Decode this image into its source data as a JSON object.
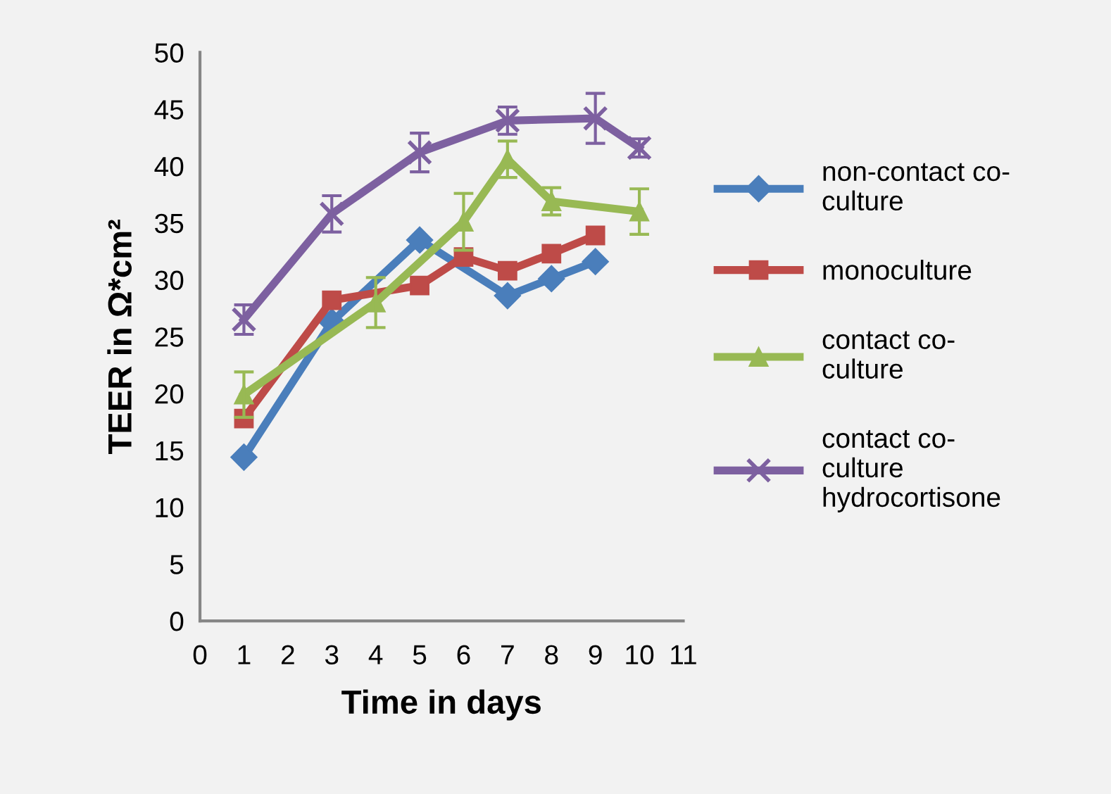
{
  "chart_data": {
    "type": "line",
    "xlabel": "Time in days",
    "ylabel": "TEER in Ω*cm²",
    "xlim": [
      0,
      11
    ],
    "xticks": [
      0,
      1,
      2,
      3,
      4,
      5,
      6,
      7,
      8,
      9,
      10,
      11
    ],
    "ylim": [
      0,
      50
    ],
    "yticks": [
      0,
      5,
      10,
      15,
      20,
      25,
      30,
      35,
      40,
      45,
      50
    ],
    "grid": false,
    "legend": "right",
    "line_style": "solid",
    "series": [
      {
        "name": "non-contact co-\nculture",
        "color": "#4a7ebb",
        "marker": "diamond",
        "x": [
          1,
          3,
          5,
          7,
          8,
          9
        ],
        "values": [
          14.4,
          26.3,
          33.5,
          28.6,
          30.1,
          31.6
        ]
      },
      {
        "name": "monoculture",
        "color": "#be4b48",
        "marker": "square",
        "x": [
          1,
          3,
          5,
          6,
          7,
          8,
          9
        ],
        "values": [
          17.8,
          28.2,
          29.5,
          32.0,
          30.8,
          32.3,
          33.9
        ]
      },
      {
        "name": "contact co-\nculture",
        "color": "#98b954",
        "marker": "triangle",
        "x": [
          1,
          4,
          6,
          7,
          8,
          10
        ],
        "values": [
          19.9,
          28.0,
          35.1,
          40.6,
          36.9,
          36.0
        ],
        "errors": [
          2.0,
          2.2,
          2.5,
          1.6,
          1.2,
          2.0
        ]
      },
      {
        "name": "contact co-\nculture\nhydrocortisone",
        "color": "#7d60a0",
        "marker": "cross",
        "x": [
          1,
          3,
          5,
          7,
          9,
          10
        ],
        "values": [
          26.5,
          35.8,
          41.2,
          44.0,
          44.2,
          41.6
        ],
        "errors": [
          1.3,
          1.6,
          1.7,
          1.2,
          2.2,
          0.8
        ]
      }
    ]
  }
}
